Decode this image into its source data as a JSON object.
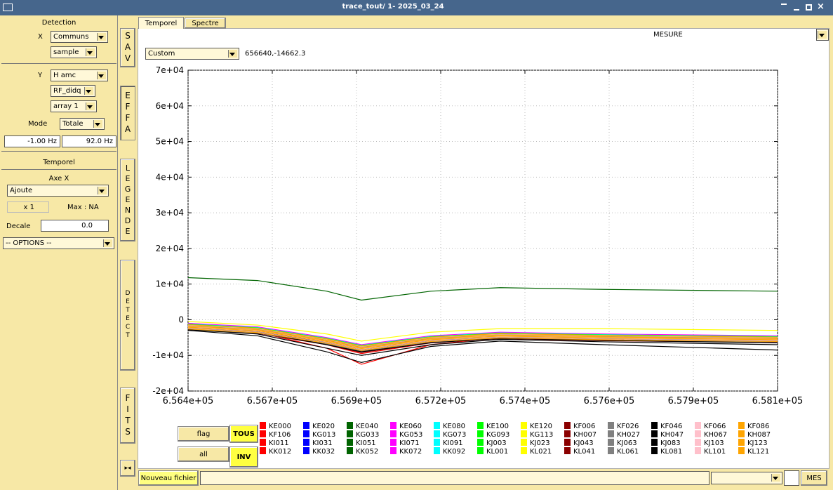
{
  "window": {
    "title": "trace_tout/ 1- 2025_03_24"
  },
  "left_panel": {
    "detection": "Detection",
    "x_label": "X",
    "x_select": "Communs",
    "x_sub": "sample",
    "y_label": "Y",
    "y_select": "H amc",
    "y_sub1": "RF_didq",
    "y_sub2": "array 1",
    "mode_label": "Mode",
    "mode_select": "Totale",
    "freq_min": "-1.00 Hz",
    "freq_max": "92.0 Hz",
    "temporel": "Temporel",
    "axe_x": "Axe X",
    "axe_select": "Ajoute",
    "factor": "x 1",
    "max": "Max : NA",
    "decale_label": "Decale",
    "decale_value": "0.0",
    "options": "-- OPTIONS --"
  },
  "side_buttons": [
    "SAV",
    "EFFA",
    "LEGENDE",
    "DETECT",
    "FITS"
  ],
  "tabs": [
    "Temporel",
    "Spectre"
  ],
  "toolbar": {
    "mesure": "MESURE",
    "preset": "Custom",
    "cursor": "656640,-14662.3"
  },
  "legend_buttons": {
    "flag": "flag",
    "tous": "TOUS",
    "all": "all",
    "inv": "INV"
  },
  "bottom_bar": {
    "new_file": "Nouveau fichier",
    "mes": "MES"
  },
  "chart_data": {
    "type": "line",
    "grid": true,
    "x": [
      656400,
      656600,
      656800,
      656900,
      657100,
      657300,
      657600,
      658100
    ],
    "xlim": [
      656400,
      658100
    ],
    "xticks": [
      {
        "value": 656400,
        "label": "6.564e+05"
      },
      {
        "value": 656642.86,
        "label": "6.567e+05"
      },
      {
        "value": 656885.71,
        "label": "6.569e+05"
      },
      {
        "value": 657128.57,
        "label": "6.572e+05"
      },
      {
        "value": 657371.43,
        "label": "6.574e+05"
      },
      {
        "value": 657614.29,
        "label": "6.576e+05"
      },
      {
        "value": 657857.14,
        "label": "6.579e+05"
      },
      {
        "value": 658100,
        "label": "6.581e+05"
      }
    ],
    "ylim": [
      -20000,
      70000
    ],
    "yticks": [
      {
        "value": -20000,
        "label": "-2e+04"
      },
      {
        "value": -10000,
        "label": "-1e+04"
      },
      0,
      {
        "value": 10000,
        "label": "1e+04"
      },
      {
        "value": 20000,
        "label": "2e+04"
      },
      {
        "value": 30000,
        "label": "3e+04"
      },
      {
        "value": 40000,
        "label": "4e+04"
      },
      {
        "value": 50000,
        "label": "5e+04"
      },
      {
        "value": 60000,
        "label": "6e+04"
      },
      {
        "value": 70000,
        "label": "7e+04"
      }
    ],
    "series": [
      {
        "name": "KE000",
        "color": "#ff0000",
        "values": [
          -1500,
          -3500,
          -8000,
          -12500,
          -7000,
          -5000,
          -5500,
          -6500
        ]
      },
      {
        "name": "KF106",
        "color": "#ff0000",
        "values": [
          -1000,
          -2500,
          -5500,
          -7500,
          -5000,
          -4000,
          -4500,
          -5000
        ]
      },
      {
        "name": "KI011",
        "color": "#ff0000",
        "values": [
          -2000,
          -3000,
          -6500,
          -9000,
          -6000,
          -4500,
          -5000,
          -5500
        ]
      },
      {
        "name": "KK012",
        "color": "#ff0000",
        "values": [
          -2500,
          -3500,
          -7000,
          -9500,
          -6500,
          -5000,
          -5500,
          -6000
        ]
      },
      {
        "name": "KE020",
        "color": "#0000ff",
        "values": [
          -2000,
          -2800,
          -5800,
          -7800,
          -5200,
          -4200,
          -4800,
          -5200
        ]
      },
      {
        "name": "KG013",
        "color": "#0000ff",
        "values": [
          -1800,
          -2600,
          -5600,
          -7600,
          -5000,
          -4000,
          -4600,
          -5000
        ]
      },
      {
        "name": "KI031",
        "color": "#0000ff",
        "values": [
          -2200,
          -3200,
          -6200,
          -8200,
          -5600,
          -4600,
          -5200,
          -5600
        ]
      },
      {
        "name": "KK032",
        "color": "#0000ff",
        "values": [
          -2600,
          -3600,
          -6600,
          -8600,
          -6000,
          -5000,
          -5600,
          -6000
        ]
      },
      {
        "name": "KE040",
        "color": "#006400",
        "values": [
          11800,
          11000,
          8000,
          5500,
          8000,
          9000,
          8500,
          8000
        ]
      },
      {
        "name": "KG033",
        "color": "#006400",
        "values": [
          -1500,
          -2500,
          -5200,
          -7200,
          -4800,
          -3800,
          -4400,
          -4800
        ]
      },
      {
        "name": "KI051",
        "color": "#006400",
        "values": [
          -2300,
          -3300,
          -6300,
          -8300,
          -5700,
          -4700,
          -5300,
          -5700
        ]
      },
      {
        "name": "KK052",
        "color": "#006400",
        "values": [
          -2700,
          -3700,
          -6800,
          -8800,
          -6200,
          -5200,
          -5800,
          -6200
        ]
      },
      {
        "name": "KE060",
        "color": "#ff00ff",
        "values": [
          -1000,
          -2000,
          -5000,
          -7000,
          -4500,
          -3500,
          -4000,
          -4500
        ]
      },
      {
        "name": "KG053",
        "color": "#ff00ff",
        "values": [
          -1600,
          -2600,
          -5400,
          -7400,
          -4900,
          -3900,
          -4500,
          -4900
        ]
      },
      {
        "name": "KI071",
        "color": "#ff00ff",
        "values": [
          -2100,
          -3100,
          -6100,
          -8100,
          -5500,
          -4500,
          -5100,
          -5500
        ]
      },
      {
        "name": "KK072",
        "color": "#ff00ff",
        "values": [
          -2400,
          -3400,
          -6400,
          -8400,
          -5800,
          -4800,
          -5400,
          -5800
        ]
      },
      {
        "name": "KE080",
        "color": "#00ffff",
        "values": [
          -1200,
          -2200,
          -5200,
          -7200,
          -4700,
          -3700,
          -4200,
          -4700
        ]
      },
      {
        "name": "KG073",
        "color": "#00ffff",
        "values": [
          -1700,
          -2700,
          -5700,
          -7700,
          -5100,
          -4100,
          -4700,
          -5100
        ]
      },
      {
        "name": "KI091",
        "color": "#00ffff",
        "values": [
          -2000,
          -3000,
          -6000,
          -8000,
          -5400,
          -4400,
          -5000,
          -5400
        ]
      },
      {
        "name": "KK092",
        "color": "#00ffff",
        "values": [
          -2500,
          -3500,
          -6500,
          -8500,
          -5900,
          -4900,
          -5500,
          -5900
        ]
      },
      {
        "name": "KE100",
        "color": "#00ff00",
        "values": [
          -1300,
          -2300,
          -5300,
          -7300,
          -4800,
          -3800,
          -4300,
          -4800
        ]
      },
      {
        "name": "KG093",
        "color": "#00ff00",
        "values": [
          -1900,
          -2900,
          -5900,
          -7900,
          -5300,
          -4300,
          -4900,
          -5300
        ]
      },
      {
        "name": "KJ003",
        "color": "#00ff00",
        "values": [
          -2200,
          -3200,
          -6300,
          -8300,
          -5700,
          -4700,
          -5300,
          -5700
        ]
      },
      {
        "name": "KL001",
        "color": "#00ff00",
        "values": [
          -2600,
          -3600,
          -6700,
          -8700,
          -6100,
          -5100,
          -5700,
          -6100
        ]
      },
      {
        "name": "KE120",
        "color": "#ffff00",
        "values": [
          -500,
          -1500,
          -4000,
          -6000,
          -3500,
          -2500,
          -2500,
          -3000
        ]
      },
      {
        "name": "KG113",
        "color": "#ffff00",
        "values": [
          -1500,
          -2500,
          -5500,
          -7500,
          -5000,
          -4000,
          -4500,
          -5000
        ]
      },
      {
        "name": "KJ023",
        "color": "#ffff00",
        "values": [
          -2000,
          -3000,
          -6000,
          -8000,
          -5500,
          -4500,
          -5000,
          -5500
        ]
      },
      {
        "name": "KL021",
        "color": "#ffff00",
        "values": [
          -2400,
          -3400,
          -6400,
          -8400,
          -5900,
          -4900,
          -5400,
          -5900
        ]
      },
      {
        "name": "KF006",
        "color": "#8b0000",
        "values": [
          -1800,
          -2800,
          -6000,
          -8500,
          -5500,
          -4500,
          -5000,
          -5500
        ]
      },
      {
        "name": "KH007",
        "color": "#8b0000",
        "values": [
          -2100,
          -3100,
          -6200,
          -8600,
          -5700,
          -4700,
          -5200,
          -5700
        ]
      },
      {
        "name": "KJ043",
        "color": "#8b0000",
        "values": [
          -2400,
          -3400,
          -6600,
          -8900,
          -6000,
          -5000,
          -5500,
          -6000
        ]
      },
      {
        "name": "KL041",
        "color": "#8b0000",
        "values": [
          -2800,
          -3800,
          -7000,
          -9200,
          -6400,
          -5300,
          -5900,
          -6400
        ]
      },
      {
        "name": "KF026",
        "color": "#808080",
        "values": [
          -1700,
          -2700,
          -5700,
          -7700,
          -5200,
          -4200,
          -4700,
          -5200
        ]
      },
      {
        "name": "KH027",
        "color": "#808080",
        "values": [
          -2000,
          -3000,
          -6100,
          -8100,
          -5500,
          -4500,
          -5000,
          -5500
        ]
      },
      {
        "name": "KJ063",
        "color": "#808080",
        "values": [
          -2300,
          -3300,
          -6400,
          -8400,
          -5800,
          -4800,
          -5300,
          -5800
        ]
      },
      {
        "name": "KL061",
        "color": "#808080",
        "values": [
          -2700,
          -3700,
          -6800,
          -8800,
          -6200,
          -5200,
          -5700,
          -6200
        ]
      },
      {
        "name": "KF046",
        "color": "#000000",
        "values": [
          -3000,
          -4500,
          -9000,
          -12000,
          -7500,
          -6000,
          -7000,
          -8500
        ]
      },
      {
        "name": "KH047",
        "color": "#000000",
        "values": [
          -2800,
          -4000,
          -8000,
          -10000,
          -7000,
          -5500,
          -6200,
          -7000
        ]
      },
      {
        "name": "KJ083",
        "color": "#000000",
        "values": [
          -2500,
          -3500,
          -7000,
          -9000,
          -6500,
          -5200,
          -5800,
          -6500
        ]
      },
      {
        "name": "KL081",
        "color": "#000000",
        "values": [
          -2200,
          -3200,
          -6500,
          -8500,
          -6000,
          -5000,
          -5500,
          -6000
        ]
      },
      {
        "name": "KF066",
        "color": "#ffc0cb",
        "values": [
          -1500,
          -2500,
          -5500,
          -7500,
          -5000,
          -4000,
          -4500,
          -5000
        ]
      },
      {
        "name": "KH067",
        "color": "#ffc0cb",
        "values": [
          -1900,
          -2900,
          -5900,
          -7900,
          -5400,
          -4400,
          -4900,
          -5400
        ]
      },
      {
        "name": "KJ103",
        "color": "#ffc0cb",
        "values": [
          -2200,
          -3200,
          -6200,
          -8200,
          -5700,
          -4700,
          -5200,
          -5700
        ]
      },
      {
        "name": "KL101",
        "color": "#ffc0cb",
        "values": [
          -2500,
          -3500,
          -6500,
          -8500,
          -6000,
          -5000,
          -5500,
          -6000
        ]
      },
      {
        "name": "KF086",
        "color": "#ffa500",
        "values": [
          -1400,
          -2400,
          -5400,
          -7400,
          -4900,
          -3900,
          -4400,
          -4900
        ]
      },
      {
        "name": "KH087",
        "color": "#ffa500",
        "values": [
          -1800,
          -2800,
          -5800,
          -7800,
          -5300,
          -4300,
          -4800,
          -5300
        ]
      },
      {
        "name": "KJ123",
        "color": "#ffa500",
        "values": [
          -2100,
          -3100,
          -6100,
          -8100,
          -5600,
          -4600,
          -5100,
          -5600
        ]
      },
      {
        "name": "KL121",
        "color": "#ffa500",
        "values": [
          -2600,
          -3600,
          -6600,
          -8600,
          -6100,
          -5100,
          -5600,
          -6100
        ]
      }
    ]
  }
}
